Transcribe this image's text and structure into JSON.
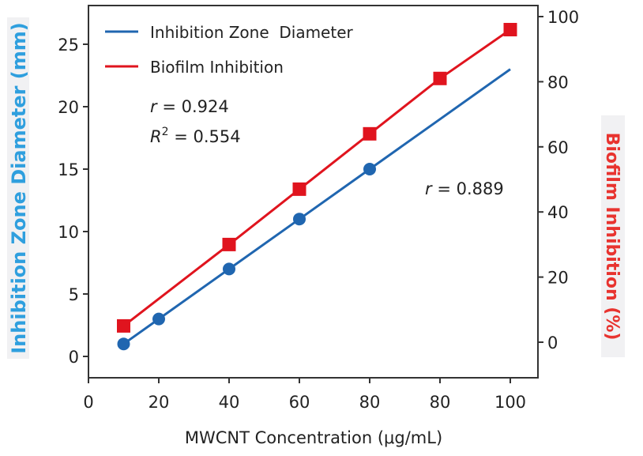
{
  "chart_data": {
    "type": "line",
    "title": "",
    "xlabel": "MWCNT Concentration (μg/mL)",
    "ylabel_left": "Inhibition Zone Diameter (mm)",
    "ylabel_right": "Biofilm Inhibition (%)",
    "x_tick_labels": [
      "0",
      "20",
      "40",
      "60",
      "80",
      "80",
      "100"
    ],
    "y_left_ticks": [
      0,
      5,
      10,
      15,
      20,
      25
    ],
    "y_left_lim": [
      -1.7,
      28
    ],
    "y_right_ticks": [
      0,
      20,
      40,
      60,
      80,
      100
    ],
    "y_right_lim": [
      -11,
      103
    ],
    "x_positions_note": "points plotted at tick-index positions; first point sits midway between ticks 0 and 20",
    "series": [
      {
        "name": "Inhibition Zone Diameter",
        "axis": "left",
        "color": "#2066b0",
        "marker": "circle",
        "points": [
          {
            "x_label": "10",
            "x_index": 0.5,
            "y": 1,
            "marker": true
          },
          {
            "x_label": "20",
            "x_index": 1,
            "y": 3,
            "marker": true
          },
          {
            "x_label": "40",
            "x_index": 2,
            "y": 7,
            "marker": true
          },
          {
            "x_label": "60",
            "x_index": 3,
            "y": 11,
            "marker": true
          },
          {
            "x_label": "80",
            "x_index": 4,
            "y": 15,
            "marker": true
          },
          {
            "x_label": "80",
            "x_index": 5,
            "y": 19,
            "marker": false
          },
          {
            "x_label": "100",
            "x_index": 6,
            "y": 23,
            "marker": false
          }
        ]
      },
      {
        "name": "Biofilm Inhibition",
        "axis": "right",
        "color": "#e0141e",
        "marker": "square",
        "points": [
          {
            "x_label": "10",
            "x_index": 0.5,
            "y": 5,
            "marker": true
          },
          {
            "x_label": "40",
            "x_index": 2,
            "y": 30,
            "marker": true
          },
          {
            "x_label": "60",
            "x_index": 3,
            "y": 47,
            "marker": true
          },
          {
            "x_label": "80",
            "x_index": 4,
            "y": 64,
            "marker": true
          },
          {
            "x_label": "80",
            "x_index": 5,
            "y": 81,
            "marker": true
          },
          {
            "x_label": "100",
            "x_index": 6,
            "y": 96,
            "marker": true
          }
        ]
      }
    ],
    "legend": {
      "position": "top-left",
      "entries": [
        {
          "label": "Inhibition Zone  Diameter",
          "color": "#2066b0"
        },
        {
          "label": "Biofilm Inhibition",
          "color": "#e0141e"
        }
      ]
    },
    "annotations": [
      {
        "id": "r1",
        "var": "r",
        "text": " = 0.924"
      },
      {
        "id": "r2",
        "var": "R",
        "sup": "2",
        "text": " = 0.554"
      },
      {
        "id": "r3",
        "var": "r",
        "text": " = 0.889"
      }
    ],
    "grid": false
  }
}
